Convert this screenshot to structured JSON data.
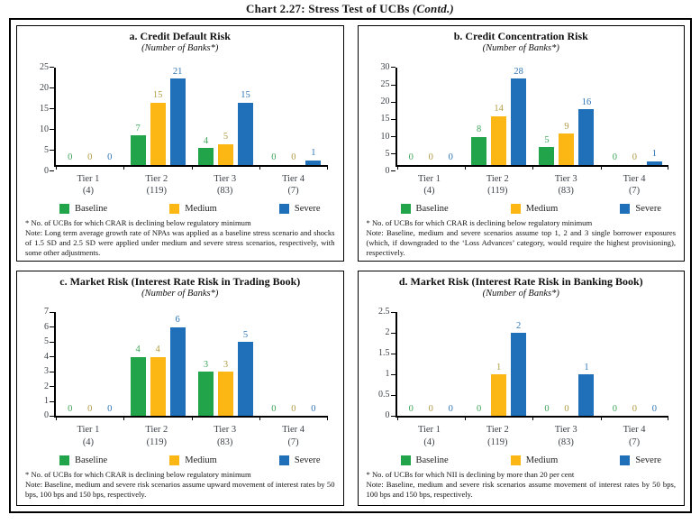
{
  "figure": {
    "title_main": "Chart 2.27: Stress Test of UCBs",
    "title_contd": "(Contd.)"
  },
  "colors": {
    "baseline": "#22A44B",
    "medium": "#FDB714",
    "severe": "#1F70B8",
    "baseline_label": "#3FA65A",
    "medium_label": "#B09C45",
    "severe_label": "#2E75B6",
    "axis_text": "#3C4148",
    "border": "#000000"
  },
  "legend_labels": [
    "Baseline",
    "Medium",
    "Severe"
  ],
  "chart_data": [
    {
      "id": "a",
      "type": "bar",
      "title": "a. Credit Default Risk",
      "subtitle": "(Number of Banks*)",
      "categories": [
        "Tier 1",
        "Tier 2",
        "Tier 3",
        "Tier 4"
      ],
      "category_sublabels": [
        "(4)",
        "(119)",
        "(83)",
        "(7)"
      ],
      "series": [
        {
          "name": "Baseline",
          "values": [
            0,
            7,
            4,
            0
          ]
        },
        {
          "name": "Medium",
          "values": [
            0,
            15,
            5,
            0
          ]
        },
        {
          "name": "Severe",
          "values": [
            0,
            21,
            15,
            1
          ]
        }
      ],
      "ylim": [
        0,
        25
      ],
      "ystep": 5,
      "grid": false,
      "legend_position": "bottom",
      "footnote_star": "* No. of UCBs for which CRAR is declining below regulatory minimum",
      "footnote_note": "Note: Long term average growth rate of NPAs was applied as a baseline stress scenario and shocks of 1.5 SD and 2.5 SD were applied under medium and severe stress scenarios, respectively, with some other adjustments."
    },
    {
      "id": "b",
      "type": "bar",
      "title": "b. Credit Concentration Risk",
      "subtitle": "(Number of Banks*)",
      "categories": [
        "Tier 1",
        "Tier 2",
        "Tier 3",
        "Tier 4"
      ],
      "category_sublabels": [
        "(4)",
        "(119)",
        "(83)",
        "(7)"
      ],
      "series": [
        {
          "name": "Baseline",
          "values": [
            0,
            8,
            5,
            0
          ]
        },
        {
          "name": "Medium",
          "values": [
            0,
            14,
            9,
            0
          ]
        },
        {
          "name": "Severe",
          "values": [
            0,
            28,
            16,
            1
          ]
        }
      ],
      "ylim": [
        0,
        30
      ],
      "ystep": 5,
      "grid": false,
      "legend_position": "bottom",
      "footnote_star": "* No. of UCBs for which CRAR is declining below regulatory minimum",
      "footnote_note": "Note: Baseline, medium and severe scenarios assume top 1, 2 and 3 single borrower exposures (which, if downgraded to the ‘Loss Advances’ category, would require the highest provisioning), respectively."
    },
    {
      "id": "c",
      "type": "bar",
      "title": "c. Market Risk (Interest Rate Risk in Trading Book)",
      "subtitle": "(Number of Banks*)",
      "categories": [
        "Tier 1",
        "Tier 2",
        "Tier 3",
        "Tier 4"
      ],
      "category_sublabels": [
        "(4)",
        "(119)",
        "(83)",
        "(7)"
      ],
      "series": [
        {
          "name": "Baseline",
          "values": [
            0,
            4,
            3,
            0
          ]
        },
        {
          "name": "Medium",
          "values": [
            0,
            4,
            3,
            0
          ]
        },
        {
          "name": "Severe",
          "values": [
            0,
            6,
            5,
            0
          ]
        }
      ],
      "ylim": [
        0,
        7
      ],
      "ystep": 1,
      "grid": false,
      "legend_position": "bottom",
      "footnote_star": "* No. of UCBs for which CRAR is declining below regulatory minimum",
      "footnote_note": "Note: Baseline, medium and severe risk scenarios assume upward movement of interest rates by 50 bps, 100 bps and 150 bps, respectively."
    },
    {
      "id": "d",
      "type": "bar",
      "title": "d. Market Risk (Interest Rate Risk in Banking Book)",
      "subtitle": "(Number of Banks*)",
      "categories": [
        "Tier 1",
        "Tier 2",
        "Tier 3",
        "Tier 4"
      ],
      "category_sublabels": [
        "(4)",
        "(119)",
        "(83)",
        "(7)"
      ],
      "series": [
        {
          "name": "Baseline",
          "values": [
            0,
            0,
            0,
            0
          ]
        },
        {
          "name": "Medium",
          "values": [
            0,
            1,
            0,
            0
          ]
        },
        {
          "name": "Severe",
          "values": [
            0,
            2,
            1,
            0
          ]
        }
      ],
      "ylim": [
        0,
        2.5
      ],
      "ystep": 0.5,
      "grid": false,
      "legend_position": "bottom",
      "footnote_star": "* No. of UCBs for which NII is declining by more than 20 per cent",
      "footnote_note": "Note: Baseline, medium and severe risk scenarios assume movement of interest rates by 50 bps, 100 bps and 150 bps, respectively."
    }
  ]
}
